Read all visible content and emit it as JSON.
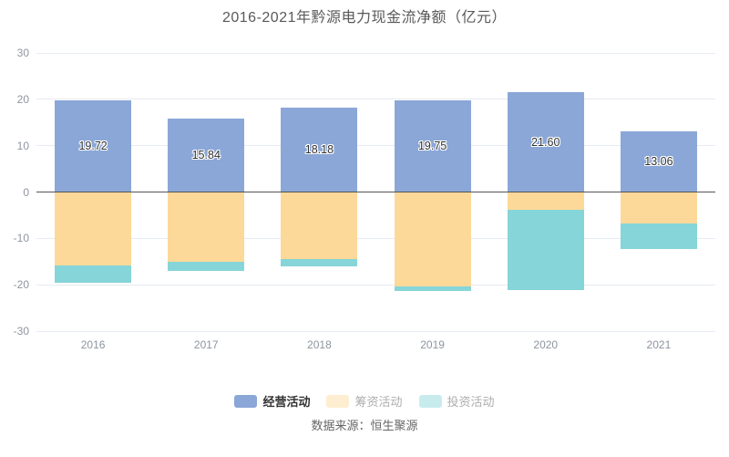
{
  "title": "2016-2021年黔源电力现金流净额（亿元）",
  "source": "数据来源：恒生聚源",
  "chart_data": {
    "type": "bar",
    "stacked": true,
    "title": "2016-2021年黔源电力现金流净额（亿元）",
    "categories": [
      "2016",
      "2017",
      "2018",
      "2019",
      "2020",
      "2021"
    ],
    "series": [
      {
        "key": "operating",
        "name": "经营活动",
        "color": "#8BA7D7",
        "values": [
          19.72,
          15.84,
          18.18,
          19.75,
          21.6,
          13.06
        ],
        "labels": [
          "19.72",
          "15.84",
          "18.18",
          "19.75",
          "21.60",
          "13.06"
        ]
      },
      {
        "key": "financing",
        "name": "筹资活动",
        "color": "#FCD999",
        "values": [
          -15.8,
          -15.0,
          -14.4,
          -20.3,
          -3.8,
          -6.7
        ]
      },
      {
        "key": "investing",
        "name": "投资活动",
        "color": "#86D5D8",
        "values": [
          -3.7,
          -2.0,
          -1.7,
          -1.1,
          -17.4,
          -5.5
        ]
      }
    ],
    "ylim": [
      -30,
      30
    ],
    "ytick_step": 10,
    "grid": "on",
    "legend_position": "bottom",
    "legend": [
      "经营活动",
      "筹资活动",
      "投资活动"
    ]
  },
  "colors": {
    "grid_line": "#E6EAF3",
    "zero_line": "#555555",
    "axis_label": "#8E959F",
    "title_text": "#595959",
    "bar_label_text": "#333333",
    "legend_active_label": "#333333",
    "legend_muted_label": "#ADADAD",
    "source_text": "#666666"
  }
}
